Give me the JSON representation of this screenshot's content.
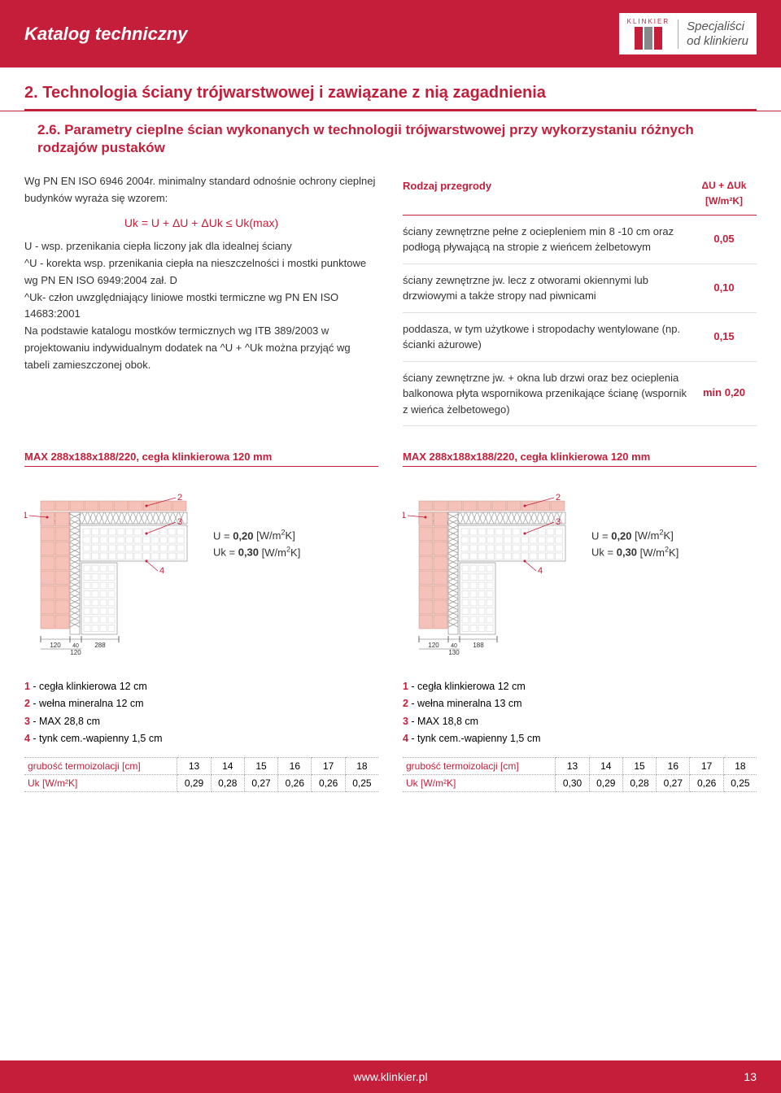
{
  "header": {
    "title": "Katalog techniczny",
    "logo_top": "KLINKIER",
    "tagline_1": "Specjaliści",
    "tagline_2": "od klinkieru"
  },
  "section": {
    "heading": "2. Technologia ściany trójwarstwowej i zawiązane z nią zagadnienia",
    "sub": "2.6. Parametry cieplne ścian wykonanych w technologii trójwarstwowej przy wykorzystaniu różnych rodzajów pustaków"
  },
  "intro": {
    "p1a": "Wg PN EN ISO 6946 2004r. minimalny standard odnośnie ochrony cieplnej budynków wyraża się wzorem:",
    "formula": "Uk = U + ΔU + ΔUk ≤ Uk(max)",
    "p2": "U - wsp. przenikania ciepła liczony jak dla idealnej ściany",
    "p3": "^U - korekta wsp. przenikania ciepła na nieszczelności i mostki punktowe wg PN EN ISO 6949:2004 zał. D",
    "p4": "^Uk- człon uwzględniający liniowe mostki termiczne wg PN EN ISO 14683:2001",
    "p5": "Na podstawie katalogu mostków termicznych wg ITB 389/2003 w projektowaniu indywidualnym dodatek na ^U + ^Uk można przyjąć wg tabeli zamieszczonej obok."
  },
  "param_table": {
    "h_left": "Rodzaj przegrody",
    "h_right_1": "ΔU + ΔUk",
    "h_right_2": "[W/m²K]",
    "rows": [
      {
        "desc": "ściany zewnętrzne pełne z ociepleniem min 8 -10 cm oraz podłogą pływającą na stropie z wieńcem żelbetowym",
        "val": "0,05"
      },
      {
        "desc": "ściany zewnętrzne jw. lecz z otworami okiennymi lub drzwiowymi a także stropy nad piwnicami",
        "val": "0,10"
      },
      {
        "desc": "poddasza, w tym użytkowe i stropodachy wentylowane (np. ścianki ażurowe)",
        "val": "0,15"
      },
      {
        "desc": "ściany zewnętrzne jw. + okna lub drzwi oraz bez ocieplenia balkonowa płyta wspornikowa przenikające ścianę (wspornik z wieńca żelbetowego)",
        "val": "min 0,20"
      }
    ]
  },
  "diagrams": {
    "title_left": "MAX 288x188x188/220, cegła klinkierowa 120 mm",
    "title_right": "MAX 288x188x188/220, cegła klinkierowa 120 mm",
    "left": {
      "u_label": "U =",
      "u_val": "0,20",
      "u_unit": "[W/m²K]",
      "uk_label": "Uk =",
      "uk_val": "0,30",
      "uk_unit": "[W/m²K]",
      "dims": {
        "a": "120",
        "b": "120",
        "c": "288",
        "gap": "40"
      },
      "legend": [
        "cegła klinkierowa 12 cm",
        "wełna mineralna 12 cm",
        "MAX 28,8 cm",
        "tynk cem.-wapienny 1,5 cm"
      ],
      "tbl_header": "grubość termoizolacji [cm]",
      "tbl_cols": [
        "13",
        "14",
        "15",
        "16",
        "17",
        "18"
      ],
      "tbl_row_label": "Uk [W/m²K]",
      "tbl_vals": [
        "0,29",
        "0,28",
        "0,27",
        "0,26",
        "0,26",
        "0,25"
      ]
    },
    "right": {
      "u_label": "U =",
      "u_val": "0,20",
      "u_unit": "[W/m²K]",
      "uk_label": "Uk =",
      "uk_val": "0,30",
      "uk_unit": "[W/m²K]",
      "dims": {
        "a": "120",
        "b": "130",
        "c": "188",
        "gap": "40"
      },
      "legend": [
        "cegła klinkierowa 12 cm",
        "wełna mineralna 13 cm",
        "MAX 18,8 cm",
        "tynk cem.-wapienny 1,5 cm"
      ],
      "tbl_header": "grubość termoizolacji [cm]",
      "tbl_cols": [
        "13",
        "14",
        "15",
        "16",
        "17",
        "18"
      ],
      "tbl_row_label": "Uk [W/m²K]",
      "tbl_vals": [
        "0,30",
        "0,29",
        "0,28",
        "0,27",
        "0,26",
        "0,25"
      ]
    }
  },
  "footer": {
    "url": "www.klinkier.pl",
    "page": "13"
  },
  "colors": {
    "brand": "#c41e3a",
    "brick": "#f4c2b8",
    "brick_stroke": "#d08a7a",
    "hatch": "#999",
    "line": "#666"
  }
}
